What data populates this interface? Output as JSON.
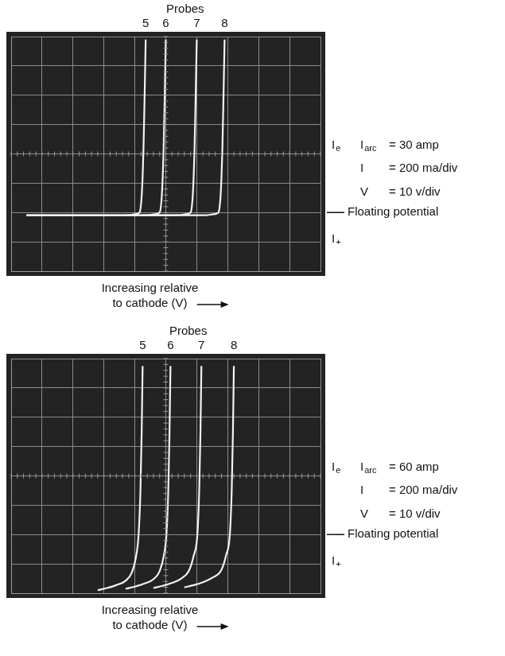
{
  "chart_data": [
    {
      "type": "line",
      "header": "Probes",
      "x_label": "Increasing relative to cathode (V)",
      "electron_label": {
        "symbol": "I",
        "sub": "e"
      },
      "ion_label": {
        "symbol": "I",
        "sub": "+"
      },
      "settings_text": [
        {
          "symbol": "I",
          "sub": "arc",
          "text": "= 30 amp"
        },
        {
          "symbol": "I",
          "text": "= 200 ma/div"
        },
        {
          "symbol": "V",
          "text": "= 10 v/div"
        }
      ],
      "floating_label": "Floating potential",
      "floating_potential": 0,
      "xlim": [
        0,
        100
      ],
      "xticks": [
        0,
        10,
        20,
        30,
        40,
        50,
        60,
        70,
        80,
        90,
        100
      ],
      "ylim": [
        -400,
        1200
      ],
      "yticks": [
        -400,
        -200,
        0,
        200,
        400,
        600,
        800,
        1000,
        1200
      ],
      "grid": true,
      "tick_labels": false,
      "series": [
        {
          "name": "5",
          "color": "#f2f2f2",
          "x": [
            5,
            30,
            38,
            40,
            41.5,
            42.3,
            42.8,
            43.2,
            43.5
          ],
          "values": [
            -20,
            -20,
            -18,
            -12,
            0,
            150,
            450,
            850,
            1180
          ]
        },
        {
          "name": "6",
          "color": "#f2f2f2",
          "x": [
            5,
            30,
            44,
            46.5,
            48,
            48.8,
            49.3,
            49.7,
            50
          ],
          "values": [
            -20,
            -20,
            -18,
            -12,
            0,
            150,
            450,
            850,
            1180
          ]
        },
        {
          "name": "7",
          "color": "#f2f2f2",
          "x": [
            5,
            30,
            54,
            56.5,
            58,
            58.8,
            59.3,
            59.7,
            60
          ],
          "values": [
            -20,
            -20,
            -18,
            -12,
            0,
            150,
            450,
            850,
            1180
          ]
        },
        {
          "name": "8",
          "color": "#f2f2f2",
          "x": [
            5,
            30,
            63,
            65.5,
            67,
            67.8,
            68.3,
            68.7,
            69
          ],
          "values": [
            -20,
            -20,
            -18,
            -12,
            0,
            150,
            450,
            850,
            1180
          ]
        }
      ]
    },
    {
      "type": "line",
      "header": "Probes",
      "x_label": "Increasing relative to cathode (V)",
      "electron_label": {
        "symbol": "I",
        "sub": "e"
      },
      "ion_label": {
        "symbol": "I",
        "sub": "+"
      },
      "settings_text": [
        {
          "symbol": "I",
          "sub": "arc",
          "text": "= 60 amp"
        },
        {
          "symbol": "I",
          "text": "= 200 ma/div"
        },
        {
          "symbol": "V",
          "text": "= 10 v/div"
        }
      ],
      "floating_label": "Floating potential",
      "floating_potential": 0,
      "xlim": [
        0,
        100
      ],
      "xticks": [
        0,
        10,
        20,
        30,
        40,
        50,
        60,
        70,
        80,
        90,
        100
      ],
      "ylim": [
        -400,
        1200
      ],
      "yticks": [
        -400,
        -200,
        0,
        200,
        400,
        600,
        800,
        1000,
        1200
      ],
      "grid": true,
      "tick_labels": false,
      "series": [
        {
          "name": "5",
          "color": "#f2f2f2",
          "x": [
            28,
            31,
            34,
            37,
            39,
            40.3,
            41.2,
            41.8,
            42.2,
            42.5
          ],
          "values": [
            -380,
            -365,
            -345,
            -315,
            -260,
            -160,
            0,
            300,
            700,
            1150
          ]
        },
        {
          "name": "6",
          "color": "#f2f2f2",
          "x": [
            37,
            40,
            43,
            46,
            48,
            49.3,
            50.2,
            50.8,
            51.2,
            51.5
          ],
          "values": [
            -370,
            -355,
            -335,
            -305,
            -250,
            -150,
            0,
            300,
            700,
            1150
          ]
        },
        {
          "name": "7",
          "color": "#f2f2f2",
          "x": [
            46,
            49,
            52,
            55,
            57.5,
            59,
            60.2,
            60.8,
            61.2,
            61.5
          ],
          "values": [
            -365,
            -350,
            -330,
            -300,
            -245,
            -145,
            0,
            300,
            700,
            1150
          ]
        },
        {
          "name": "8",
          "color": "#f2f2f2",
          "x": [
            56,
            59,
            62,
            65,
            68,
            69.5,
            70.7,
            71.3,
            71.7,
            72
          ],
          "values": [
            -360,
            -345,
            -325,
            -295,
            -240,
            -140,
            0,
            300,
            700,
            1150
          ]
        }
      ]
    }
  ]
}
